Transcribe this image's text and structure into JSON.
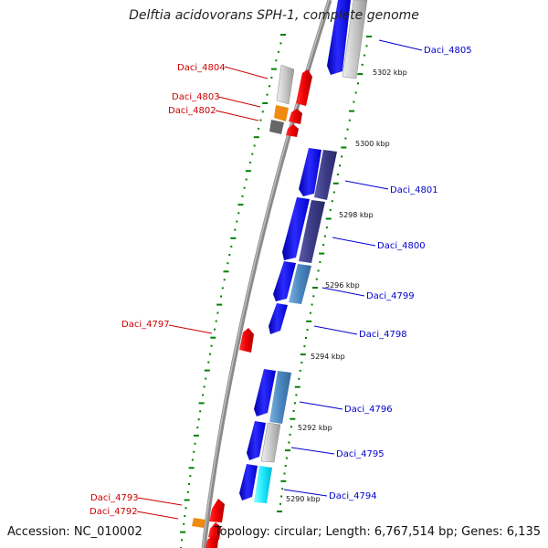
{
  "title": "Delftia acidovorans SPH-1, complete genome",
  "accession": "Accession: NC_010002",
  "topology": "Topology: circular; Length: 6,767,514 bp; Genes: 6,135",
  "colors": {
    "forward_label": "#cc0000",
    "reverse_label": "#0000cc",
    "backbone": "#808080",
    "tick": "#008000"
  },
  "scale_ticks": [
    "5302 kbp",
    "5300 kbp",
    "5298 kbp",
    "5296 kbp",
    "5294 kbp",
    "5292 kbp",
    "5290 kbp"
  ],
  "genes_left": [
    "Daci_4804",
    "Daci_4803",
    "Daci_4802",
    "Daci_4797",
    "Daci_4793",
    "Daci_4792"
  ],
  "genes_right": [
    "Daci_4805",
    "Daci_4801",
    "Daci_4800",
    "Daci_4799",
    "Daci_4798",
    "Daci_4796",
    "Daci_4795",
    "Daci_4794"
  ]
}
